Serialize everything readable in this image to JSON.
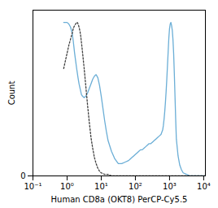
{
  "chart_data": {
    "type": "line",
    "xlabel": "Human CD8a (OKT8) PerCP-Cy5.5",
    "ylabel": "Count",
    "log": "x",
    "grid": false,
    "xlim": [
      0.1,
      11220.18
    ],
    "xticks": [
      {
        "value": 0.1,
        "label": "10⁻¹"
      },
      {
        "value": 1,
        "label": "10⁰"
      },
      {
        "value": 10,
        "label": "10¹"
      },
      {
        "value": 100,
        "label": "10²"
      },
      {
        "value": 1000,
        "label": "10³"
      },
      {
        "value": 10000,
        "label": "10⁴"
      }
    ],
    "ylim": [
      0,
      1.08
    ],
    "yticks": [
      0
    ],
    "series": [
      {
        "color": "#6baed6",
        "line_style": "solid",
        "x": [
          0.7943282,
          1,
          1.122018,
          1.258925,
          1.412538,
          1.513561,
          1.584893,
          1.659587,
          1.778279,
          1.905461,
          1.995262,
          2.089296,
          2.238721,
          2.398833,
          2.511886,
          2.630268,
          2.818383,
          3.162278,
          3.548134,
          3.981072,
          4.466836,
          5.011872,
          5.623413,
          6.309573,
          7.079458,
          7.943282,
          8.912509,
          10,
          11.22018,
          12.58925,
          14.12538,
          15.84893,
          19.95262,
          25.11886,
          31.62278,
          39.81072,
          50.11872,
          63.09573,
          70.79458,
          79.43282,
          89.12509,
          100,
          112.2018,
          125.8925,
          141.2538,
          158.4893,
          177.8279,
          199.5262,
          223.8721,
          251.1886,
          281.8383,
          316.2278,
          354.8134,
          398.1072,
          446.6836,
          501.1872,
          562.3413,
          630.9573,
          660.6934,
          691.831,
          724.436,
          758.5776,
          794.3282,
          831.7638,
          870.9636,
          912.0108,
          954.9926,
          1000,
          1047.129,
          1096.478,
          1148.154,
          1202.264,
          1258.925,
          1318.257,
          1380.384,
          1445.44,
          1513.561,
          1584.893,
          1778.279,
          1995.262,
          2238.721,
          2511.886,
          3162.278,
          3981.072,
          5011.872,
          6309.573,
          10000,
          11220.18
        ],
        "values": [
          1.0,
          1.0,
          0.99,
          0.97,
          0.93,
          0.88,
          0.84,
          0.8,
          0.75,
          0.7,
          0.67,
          0.64,
          0.6,
          0.57,
          0.55,
          0.53,
          0.52,
          0.51,
          0.52,
          0.54,
          0.57,
          0.6,
          0.63,
          0.65,
          0.66,
          0.64,
          0.59,
          0.52,
          0.44,
          0.36,
          0.29,
          0.23,
          0.16,
          0.11,
          0.08,
          0.08,
          0.09,
          0.1,
          0.11,
          0.12,
          0.13,
          0.14,
          0.15,
          0.16,
          0.17,
          0.17,
          0.18,
          0.19,
          0.2,
          0.21,
          0.21,
          0.22,
          0.23,
          0.24,
          0.25,
          0.26,
          0.27,
          0.3,
          0.33,
          0.37,
          0.42,
          0.48,
          0.55,
          0.63,
          0.72,
          0.81,
          0.9,
          0.96,
          0.99,
          1.0,
          0.98,
          0.95,
          0.89,
          0.8,
          0.67,
          0.52,
          0.37,
          0.24,
          0.13,
          0.07,
          0.04,
          0.02,
          0.01,
          0.0,
          0.0,
          0.0,
          0.0,
          0.0
        ]
      },
      {
        "color": "#404040",
        "line_style": "dotted",
        "x": [
          0.7943282,
          1,
          1.122018,
          1.258925,
          1.412538,
          1.513561,
          1.584893,
          1.659587,
          1.778279,
          1.905461,
          1.995262,
          2.089296,
          2.238721,
          2.398833,
          2.511886,
          2.630268,
          2.818383,
          3.162278,
          3.548134,
          3.981072,
          4.466836,
          5.011872,
          5.623413,
          6.309573,
          7.079458,
          7.943282,
          8.912509,
          10,
          12.58925,
          15.84893,
          19.95262,
          25.11886,
          31.62278,
          39.81072,
          50.11872,
          63.09573,
          79.43282,
          100,
          158.4893,
          316.2278,
          1000,
          10000,
          11220.18
        ],
        "values": [
          0.7,
          0.8,
          0.85,
          0.89,
          0.93,
          0.96,
          0.97,
          0.98,
          0.99,
          1.0,
          1.0,
          0.99,
          0.97,
          0.94,
          0.91,
          0.87,
          0.81,
          0.7,
          0.58,
          0.46,
          0.35,
          0.25,
          0.18,
          0.12,
          0.08,
          0.05,
          0.03,
          0.02,
          0.01,
          0.01,
          0.0,
          0.0,
          0.0,
          0.0,
          0.0,
          0.0,
          0.0,
          0.0,
          0.0,
          0.0,
          0.0,
          0.0,
          0.0
        ]
      }
    ]
  }
}
